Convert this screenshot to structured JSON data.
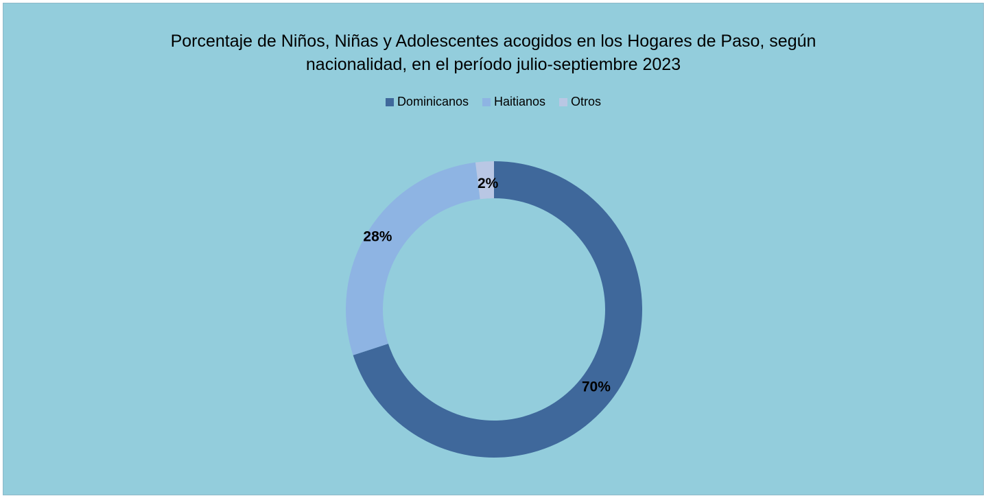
{
  "chart_data": {
    "type": "pie",
    "variant": "doughnut",
    "title_line1": "Porcentaje de Niños, Niñas y Adolescentes acogidos en los Hogares de Paso, según",
    "title_line2": "nacionalidad, en el período julio-septiembre 2023",
    "legend_position": "top",
    "categories": [
      "Dominicanos",
      "Haitianos",
      "Otros"
    ],
    "values": [
      70,
      28,
      2
    ],
    "data_labels": [
      "70%",
      "28%",
      "2%"
    ],
    "colors": [
      "#3F689B",
      "#8EB4E3",
      "#B9C7E4"
    ],
    "background_color": "#93CDDC"
  }
}
